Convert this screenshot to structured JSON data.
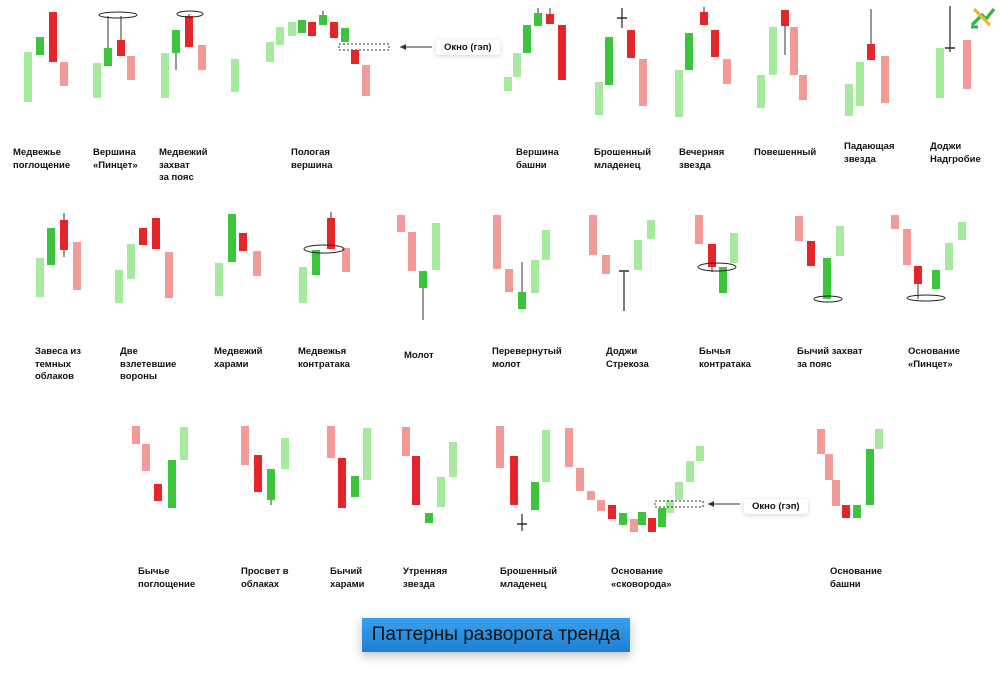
{
  "title": "Паттерны разворота тренда",
  "logo_icon": "litefinance-logo-icon",
  "gap_label": "Окно (гэп)",
  "colors": {
    "bull": "#3dc43d",
    "bull_light": "#a8e9a0",
    "bear": "#e4262a",
    "bear_light": "#f29a98",
    "outline": "#222222",
    "title_bg": "#1d88df"
  },
  "rows": [
    {
      "patterns": [
        {
          "id": "bearish-engulfing",
          "label": "Медвежье\nпоглощение"
        },
        {
          "id": "tweezer-top",
          "label": "Вершина\n«Пинцет»"
        },
        {
          "id": "bearish-belt-hold",
          "label": "Медвежий\nзахват\nза пояс"
        },
        {
          "id": "rounded-top",
          "label": "Пологая\nвершина"
        },
        {
          "id": "tower-top",
          "label": "Вершина\nбашни"
        },
        {
          "id": "abandoned-baby-top",
          "label": "Брошенный\nмладенец"
        },
        {
          "id": "evening-star",
          "label": "Вечерняя\nзвезда"
        },
        {
          "id": "hanging-man",
          "label": "Повешенный"
        },
        {
          "id": "shooting-star",
          "label": "Падающая\nзвезда"
        },
        {
          "id": "gravestone-doji",
          "label": "Доджи\nНадгробие"
        }
      ]
    },
    {
      "patterns": [
        {
          "id": "dark-cloud-cover",
          "label": "Завеса из\nтемных\nоблаков"
        },
        {
          "id": "two-crows",
          "label": "Две\nвзлетевшие\nвороны"
        },
        {
          "id": "bearish-harami",
          "label": "Медвежий\nхарами"
        },
        {
          "id": "bearish-counterattack",
          "label": "Медвежья\nконтратака"
        },
        {
          "id": "hammer",
          "label": "Молот"
        },
        {
          "id": "inverted-hammer",
          "label": "Перевернутый\nмолот"
        },
        {
          "id": "dragonfly-doji",
          "label": "Доджи\nСтрекоза"
        },
        {
          "id": "bullish-counterattack",
          "label": "Бычья\nконтратака"
        },
        {
          "id": "bullish-belt-hold",
          "label": "Бычий захват\nза пояс"
        },
        {
          "id": "tweezer-bottom",
          "label": "Основание\n«Пинцет»"
        }
      ]
    },
    {
      "patterns": [
        {
          "id": "bullish-engulfing",
          "label": "Бычье\nпоглощение"
        },
        {
          "id": "piercing-line",
          "label": "Просвет в\nоблаках"
        },
        {
          "id": "bullish-harami",
          "label": "Бычий\nхарами"
        },
        {
          "id": "morning-star",
          "label": "Утренняя\nзвезда"
        },
        {
          "id": "abandoned-baby-bottom",
          "label": "Брошенный\nмладенец"
        },
        {
          "id": "frying-pan-bottom",
          "label": "Основание\n«сковорода»"
        },
        {
          "id": "tower-bottom",
          "label": "Основание\nбашни"
        }
      ]
    }
  ]
}
